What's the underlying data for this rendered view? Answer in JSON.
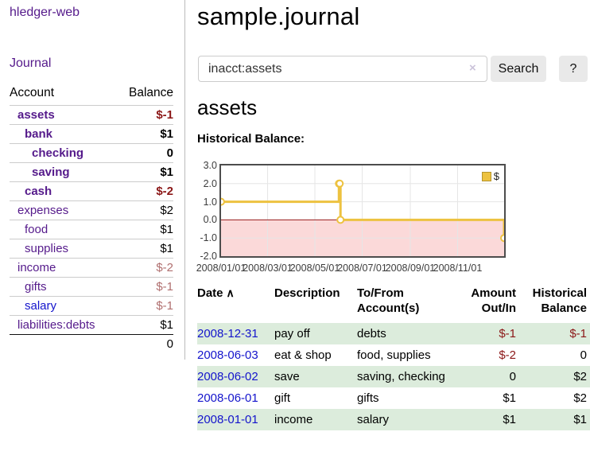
{
  "app": {
    "brand": "hledger-web",
    "nav_journal": "Journal"
  },
  "sidebar": {
    "header": {
      "account": "Account",
      "balance": "Balance"
    },
    "accounts": [
      {
        "name": "assets",
        "balance": "$-1"
      },
      {
        "name": "bank",
        "balance": "$1"
      },
      {
        "name": "checking",
        "balance": "0"
      },
      {
        "name": "saving",
        "balance": "$1"
      },
      {
        "name": "cash",
        "balance": "$-2"
      },
      {
        "name": "expenses",
        "balance": "$2"
      },
      {
        "name": "food",
        "balance": "$1"
      },
      {
        "name": "supplies",
        "balance": "$1"
      },
      {
        "name": "income",
        "balance": "$-2"
      },
      {
        "name": "gifts",
        "balance": "$-1"
      },
      {
        "name": "salary",
        "balance": "$-1"
      },
      {
        "name": "liabilities:debts",
        "balance": "$1"
      }
    ],
    "total": "0"
  },
  "header": {
    "title": "sample.journal"
  },
  "search": {
    "value": "inacct:assets",
    "button": "Search",
    "help": "?"
  },
  "icons": {
    "clear_search": "×",
    "sort_ascending": "∧"
  },
  "main": {
    "account_title": "assets",
    "chart_title": "Historical Balance:"
  },
  "chart_data": {
    "type": "line",
    "title": "Historical Balance:",
    "x_type": "date",
    "xlim": [
      "2008-01-01",
      "2008-12-31"
    ],
    "ylim": [
      -2,
      3
    ],
    "x_ticks": [
      "2008/01/01",
      "2008/03/01",
      "2008/05/01",
      "2008/07/01",
      "2008/09/01",
      "2008/11/01"
    ],
    "y_ticks": [
      "3.0",
      "2.0",
      "1.0",
      "0.0",
      "-1.0",
      "-2.0"
    ],
    "grid": true,
    "legend_position": "top-right",
    "series": [
      {
        "name": "$",
        "type": "step-line",
        "color": "#edc240",
        "points": [
          [
            "2008-01-01",
            1
          ],
          [
            "2008-06-01",
            2
          ],
          [
            "2008-06-02",
            2
          ],
          [
            "2008-06-03",
            0
          ],
          [
            "2008-12-31",
            -1
          ]
        ]
      }
    ],
    "grid_color": "#e6e6e6",
    "negative_region_color": "#fbd9d9",
    "zero_line_color": "#9b1c1c"
  },
  "register": {
    "headers": {
      "date": "Date",
      "description": "Description",
      "accounts": "To/From Account(s)",
      "amount": "Amount Out/In",
      "balance": "Historical Balance"
    },
    "rows": [
      {
        "date": "2008-12-31",
        "description": "pay off",
        "accounts": "debts",
        "amount": "$-1",
        "balance": "$-1"
      },
      {
        "date": "2008-06-03",
        "description": "eat & shop",
        "accounts": "food, supplies",
        "amount": "$-2",
        "balance": "0"
      },
      {
        "date": "2008-06-02",
        "description": "save",
        "accounts": "saving, checking",
        "amount": "0",
        "balance": "$2"
      },
      {
        "date": "2008-06-01",
        "description": "gift",
        "accounts": "gifts",
        "amount": "$1",
        "balance": "$2"
      },
      {
        "date": "2008-01-01",
        "description": "income",
        "accounts": "salary",
        "amount": "$1",
        "balance": "$1"
      }
    ]
  }
}
